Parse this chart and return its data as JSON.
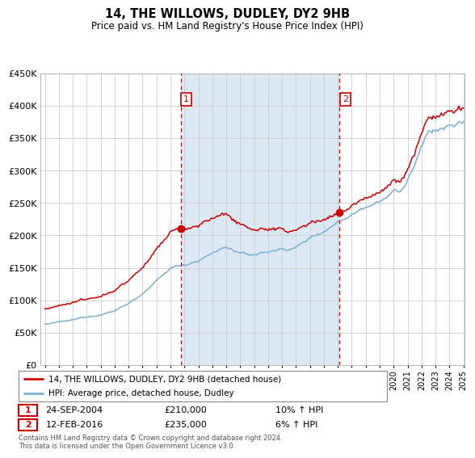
{
  "title": "14, THE WILLOWS, DUDLEY, DY2 9HB",
  "subtitle": "Price paid vs. HM Land Registry's House Price Index (HPI)",
  "legend_entry1": "14, THE WILLOWS, DUDLEY, DY2 9HB (detached house)",
  "legend_entry2": "HPI: Average price, detached house, Dudley",
  "sale1_date": "24-SEP-2004",
  "sale1_price": "£210,000",
  "sale1_hpi": "10% ↑ HPI",
  "sale2_date": "12-FEB-2016",
  "sale2_price": "£235,000",
  "sale2_hpi": "6% ↑ HPI",
  "footnote": "Contains HM Land Registry data © Crown copyright and database right 2024.\nThis data is licensed under the Open Government Licence v3.0.",
  "line1_color": "#cc0000",
  "line2_color": "#7ab0d4",
  "vline_color": "#cc0000",
  "background_color": "#ffffff",
  "plot_bg_color_main": "#ffffff",
  "plot_bg_color_owned": "#dde8f5",
  "grid_color": "#cccccc",
  "sale1_year": 2004.73,
  "sale2_year": 2016.12,
  "start_year": 1995,
  "end_year": 2025,
  "ylim": [
    0,
    450000
  ],
  "yticks": [
    0,
    50000,
    100000,
    150000,
    200000,
    250000,
    300000,
    350000,
    400000,
    450000
  ]
}
